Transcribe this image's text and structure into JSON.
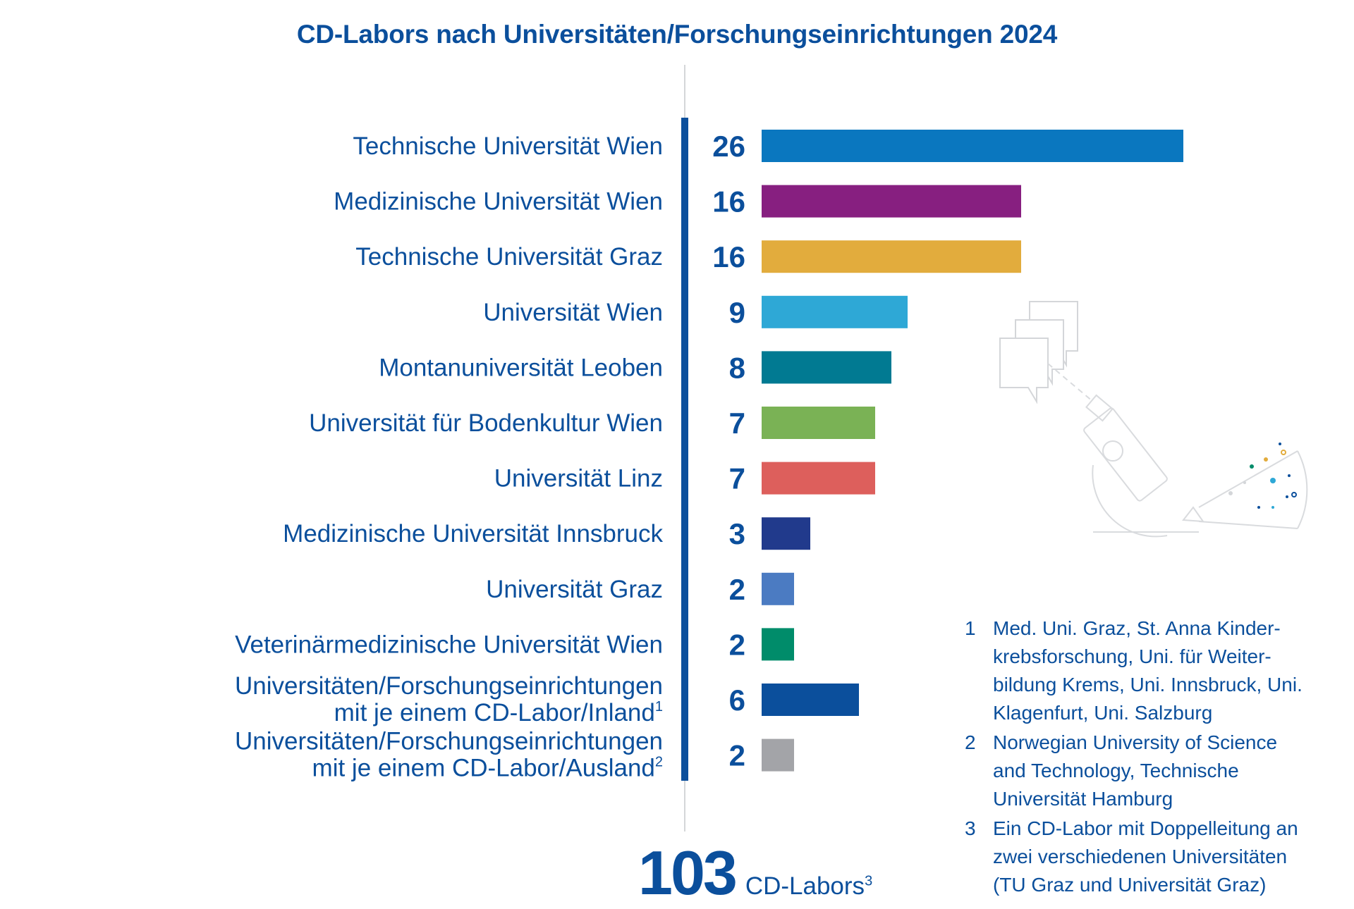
{
  "chart_data": {
    "type": "bar",
    "orientation": "horizontal",
    "title": "CD-Labors nach Universitäten/Forschungseinrichtungen 2024",
    "categories": [
      [
        "Technische Universität Wien"
      ],
      [
        "Medizinische Universität Wien"
      ],
      [
        "Technische Universität Graz"
      ],
      [
        "Universität Wien"
      ],
      [
        "Montanuniversität Leoben"
      ],
      [
        "Universität für Bodenkultur Wien"
      ],
      [
        "Universität Linz"
      ],
      [
        "Medizinische Universität Innsbruck"
      ],
      [
        "Universität Graz"
      ],
      [
        "Veterinärmedizinische Universität Wien"
      ],
      [
        "Universitäten/Forschungseinrichtungen",
        "mit je einem CD-Labor/Inland"
      ],
      [
        "Universitäten/Forschungseinrichtungen",
        "mit je einem CD-Labor/Ausland"
      ]
    ],
    "footnote_marks": [
      "",
      "",
      "",
      "",
      "",
      "",
      "",
      "",
      "",
      "",
      "1",
      "2"
    ],
    "values": [
      26,
      16,
      16,
      9,
      8,
      7,
      7,
      3,
      2,
      2,
      6,
      2
    ],
    "colors": [
      "#0a77bf",
      "#871f80",
      "#e2ac3d",
      "#2ea8d6",
      "#017a92",
      "#7ab255",
      "#dd5f5c",
      "#213a8c",
      "#4b7bc2",
      "#008c6a",
      "#0b4f9c",
      "#a3a4a8"
    ],
    "xlim": [
      0,
      26
    ],
    "grid": false,
    "legend": "none"
  },
  "total": {
    "value": "103",
    "unit": "CD-Labors",
    "mark": "3"
  },
  "footnotes": [
    {
      "num": "1",
      "lines": [
        "Med. Uni. Graz, St. Anna Kinder-",
        "krebsforschung, Uni. für Weiter-",
        "bildung Krems, Uni. Innsbruck, Uni.",
        "Klagenfurt, Uni. Salzburg"
      ]
    },
    {
      "num": "2",
      "lines": [
        "Norwegian University of Science",
        "and Technology, Technische",
        "Universität Hamburg"
      ]
    },
    {
      "num": "3",
      "lines": [
        "Ein CD-Labor mit Doppelleitung an",
        "zwei verschiedenen Universitäten",
        "(TU Graz und Universität Graz)"
      ]
    }
  ]
}
